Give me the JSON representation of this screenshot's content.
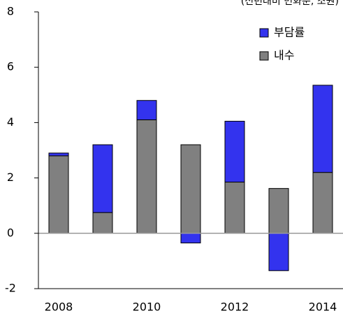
{
  "chart_data": {
    "type": "bar",
    "stacked": true,
    "unit_note": "(전년대비 변화분, 조원)",
    "categories": [
      "2008",
      null,
      "2010",
      null,
      "2012",
      null,
      "2014"
    ],
    "series": [
      {
        "name": "내수",
        "color": "#808080",
        "values": [
          2.8,
          0.75,
          4.1,
          3.2,
          1.85,
          1.62,
          2.2
        ]
      },
      {
        "name": "부담률",
        "color": "#3333ee",
        "values": [
          0.1,
          2.45,
          0.7,
          -0.35,
          2.2,
          -1.35,
          3.15
        ]
      }
    ],
    "ylim": [
      -2,
      8
    ],
    "yticks": [
      -2,
      0,
      2,
      4,
      6,
      8
    ],
    "legend": "upper right"
  }
}
